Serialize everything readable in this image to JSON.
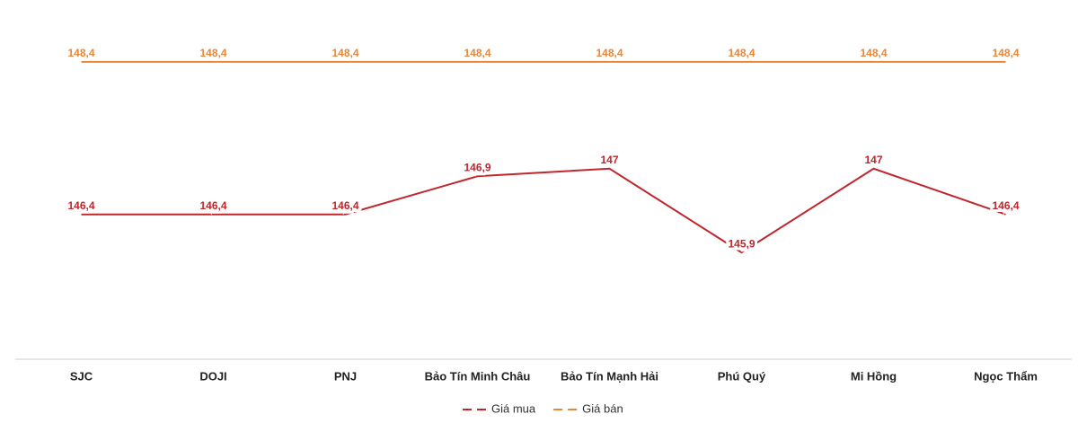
{
  "chart_data": {
    "type": "line",
    "categories": [
      "SJC",
      "DOJI",
      "PNJ",
      "Bảo Tín Minh Châu",
      "Bảo Tín Mạnh Hải",
      "Phú Quý",
      "Mi Hồng",
      "Ngọc Thẩm"
    ],
    "series": [
      {
        "name": "Giá mua",
        "color": "#c0272d",
        "values": [
          146.4,
          146.4,
          146.4,
          146.9,
          147,
          145.9,
          147,
          146.4
        ],
        "value_labels": [
          "146,4",
          "146,4",
          "146,4",
          "146,9",
          "147",
          "145,9",
          "147",
          "146,4"
        ]
      },
      {
        "name": "Giá bán",
        "color": "#e8873a",
        "values": [
          148.4,
          148.4,
          148.4,
          148.4,
          148.4,
          148.4,
          148.4,
          148.4
        ],
        "value_labels": [
          "148,4",
          "148,4",
          "148,4",
          "148,4",
          "148,4",
          "148,4",
          "148,4",
          "148,4"
        ]
      }
    ],
    "ylim": [
      144.5,
      149
    ]
  }
}
